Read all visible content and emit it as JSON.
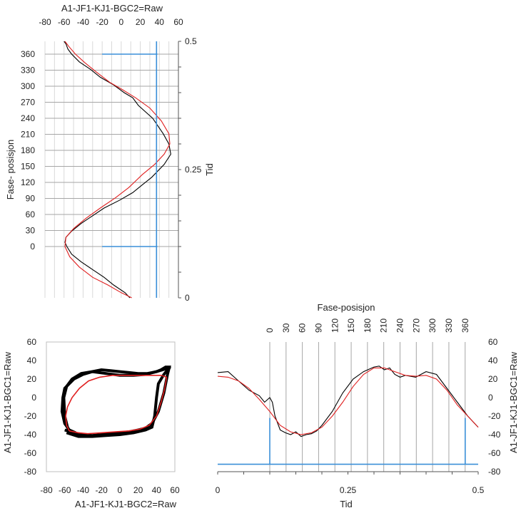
{
  "chart_data": [
    {
      "id": "top",
      "type": "line",
      "title": "A1-JF1-KJ1-BGC2=Raw",
      "xlabel": "A1-JF1-KJ1-BGC2=Raw",
      "ylabel_left": "Fase- posisjon",
      "ylabel_right": "Tid",
      "x_ticks": [
        -80,
        -60,
        -40,
        -20,
        0,
        20,
        40,
        60
      ],
      "xlim": [
        -80,
        60
      ],
      "y_left_ticks": [
        0,
        30,
        60,
        90,
        120,
        150,
        180,
        210,
        240,
        270,
        300,
        330,
        360
      ],
      "y_right_ticks": [
        0,
        0.25,
        0.5
      ],
      "y_right_tick_labels": [
        "0",
        "0.25",
        "0.5"
      ],
      "ylim_right": [
        0,
        0.5
      ],
      "grid": true,
      "series": [
        {
          "color": "#000000",
          "x": [
            9,
            4,
            -8,
            -18,
            -30,
            -42,
            -52,
            -57,
            -59,
            -58,
            -52,
            -42,
            -30,
            -18,
            -2,
            12,
            22,
            32,
            45,
            52,
            50,
            44,
            33,
            18,
            12,
            3,
            -8,
            -22,
            -32,
            -44,
            -52,
            -56,
            -58,
            -60
          ],
          "y": [
            0,
            0.01,
            0.025,
            0.04,
            0.055,
            0.07,
            0.085,
            0.1,
            0.108,
            0.118,
            0.13,
            0.145,
            0.16,
            0.175,
            0.19,
            0.205,
            0.22,
            0.235,
            0.26,
            0.28,
            0.3,
            0.32,
            0.35,
            0.375,
            0.39,
            0.4,
            0.415,
            0.43,
            0.445,
            0.46,
            0.475,
            0.485,
            0.495,
            0.5
          ]
        },
        {
          "color": "#e02020",
          "x": [
            11,
            0,
            -14,
            -30,
            -44,
            -54,
            -59,
            -58,
            -50,
            -37,
            -22,
            -6,
            8,
            22,
            35,
            45,
            51,
            50,
            42,
            30,
            15,
            2,
            -12,
            -26,
            -38,
            -48,
            -55,
            -59
          ],
          "y": [
            0,
            0.01,
            0.025,
            0.04,
            0.06,
            0.08,
            0.1,
            0.118,
            0.135,
            0.155,
            0.175,
            0.195,
            0.215,
            0.24,
            0.26,
            0.28,
            0.3,
            0.32,
            0.345,
            0.37,
            0.39,
            0.405,
            0.42,
            0.44,
            0.458,
            0.475,
            0.49,
            0.5
          ]
        },
        {
          "color": "#3a8fd8",
          "x": [
            37,
            37
          ],
          "y": [
            0,
            0.5
          ]
        }
      ],
      "markers": [
        {
          "color": "#3a8fd8",
          "x": [
            -20,
            38
          ],
          "y": [
            0.1,
            0.1
          ]
        },
        {
          "color": "#3a8fd8",
          "x": [
            -20,
            38
          ],
          "y": [
            0.475,
            0.475
          ]
        }
      ]
    },
    {
      "id": "bottom-left",
      "type": "line",
      "xlabel": "A1-JF1-KJ1-BGC2=Raw",
      "ylabel": "A1-JF1-KJ1-BGC1=Raw",
      "x_ticks": [
        -80,
        -60,
        -40,
        -20,
        0,
        20,
        40,
        60
      ],
      "y_ticks": [
        -80,
        -60,
        -40,
        -20,
        0,
        20,
        40,
        60
      ],
      "xlim": [
        -80,
        60
      ],
      "ylim": [
        -80,
        60
      ],
      "grid": false,
      "series": [
        {
          "color": "#000000",
          "x": [
            -60,
            -50,
            -40,
            -30,
            -20,
            -10,
            0,
            10,
            20,
            28,
            35,
            42,
            48,
            52,
            54,
            50,
            45,
            40,
            35,
            30,
            20,
            10,
            0,
            -10,
            -20,
            -30,
            -40,
            -50,
            -55,
            -60,
            -62,
            -63,
            -60,
            -55,
            -48
          ],
          "y": [
            -35,
            -38,
            -40,
            -41,
            -40,
            -39,
            -38,
            -37,
            -35,
            -33,
            -28,
            -15,
            5,
            25,
            33,
            33,
            30,
            28,
            27,
            26,
            26,
            27,
            28,
            29,
            30,
            28,
            25,
            20,
            15,
            10,
            0,
            -15,
            -28,
            -35,
            -38
          ]
        },
        {
          "color": "#000000",
          "x": [
            -58,
            -45,
            -30,
            -15,
            0,
            15,
            28,
            35,
            38,
            40,
            42,
            48,
            53,
            50,
            40,
            28,
            15,
            0,
            -15,
            -30,
            -42,
            -52,
            -58,
            -61,
            -60,
            -56
          ],
          "y": [
            -38,
            -42,
            -42,
            -41,
            -40,
            -38,
            -35,
            -32,
            -20,
            0,
            15,
            25,
            31,
            31,
            28,
            25,
            24,
            24,
            26,
            28,
            26,
            20,
            12,
            0,
            -20,
            -36
          ]
        },
        {
          "color": "#e02020",
          "x": [
            -55,
            -45,
            -35,
            -20,
            -5,
            10,
            22,
            32,
            40,
            45,
            49,
            51,
            45,
            35,
            22,
            8,
            -8,
            -22,
            -34,
            -44,
            -52,
            -57,
            -59,
            -58,
            -55
          ],
          "y": [
            -36,
            -38,
            -39,
            -38,
            -37,
            -36,
            -34,
            -30,
            -20,
            -5,
            10,
            22,
            24,
            24,
            24,
            24,
            24,
            22,
            18,
            10,
            0,
            -10,
            -20,
            -30,
            -36
          ]
        }
      ]
    },
    {
      "id": "bottom-right",
      "type": "line",
      "title": "Fase-posisjon",
      "xlabel": "Tid",
      "ylabel": "A1-JF1-KJ1-BGC1=Raw",
      "x_ticks": [
        0,
        0.25,
        0.5
      ],
      "x_tick_labels": [
        "0",
        "0.25",
        "0.5"
      ],
      "xlim": [
        0,
        0.5
      ],
      "y_ticks": [
        -80,
        -60,
        -40,
        -20,
        0,
        20,
        40,
        60
      ],
      "ylim": [
        -80,
        60
      ],
      "top_ticks": [
        0,
        30,
        60,
        90,
        120,
        150,
        180,
        210,
        240,
        270,
        300,
        330,
        360
      ],
      "grid": true,
      "series": [
        {
          "color": "#000000",
          "x": [
            0,
            0.02,
            0.04,
            0.06,
            0.08,
            0.09,
            0.1,
            0.105,
            0.11,
            0.12,
            0.13,
            0.14,
            0.15,
            0.16,
            0.17,
            0.18,
            0.19,
            0.2,
            0.22,
            0.24,
            0.26,
            0.28,
            0.3,
            0.31,
            0.32,
            0.33,
            0.34,
            0.35,
            0.36,
            0.37,
            0.38,
            0.4,
            0.42,
            0.44,
            0.46,
            0.48,
            0.5
          ],
          "y": [
            27,
            28,
            18,
            8,
            2,
            -5,
            0,
            -5,
            -20,
            -35,
            -38,
            -40,
            -37,
            -42,
            -40,
            -39,
            -36,
            -30,
            -15,
            5,
            20,
            28,
            33,
            34,
            30,
            32,
            25,
            22,
            24,
            23,
            22,
            28,
            25,
            10,
            -5,
            -20,
            -32
          ]
        },
        {
          "color": "#e02020",
          "x": [
            0,
            0.02,
            0.04,
            0.06,
            0.08,
            0.1,
            0.12,
            0.14,
            0.16,
            0.18,
            0.2,
            0.22,
            0.24,
            0.26,
            0.28,
            0.3,
            0.32,
            0.34,
            0.36,
            0.38,
            0.4,
            0.42,
            0.44,
            0.46,
            0.48,
            0.5
          ],
          "y": [
            23,
            22,
            18,
            10,
            -2,
            -15,
            -30,
            -37,
            -40,
            -38,
            -32,
            -20,
            -5,
            12,
            25,
            32,
            32,
            28,
            24,
            23,
            24,
            20,
            8,
            -8,
            -20,
            -32
          ]
        },
        {
          "color": "#3a8fd8",
          "x": [
            0,
            0.5
          ],
          "y": [
            -72,
            -72
          ]
        }
      ],
      "markers": [
        {
          "color": "#3a8fd8",
          "x": [
            0.1,
            0.1
          ],
          "y": [
            -72,
            -22
          ]
        },
        {
          "color": "#3a8fd8",
          "x": [
            0.475,
            0.475
          ],
          "y": [
            -72,
            -22
          ]
        }
      ]
    }
  ]
}
